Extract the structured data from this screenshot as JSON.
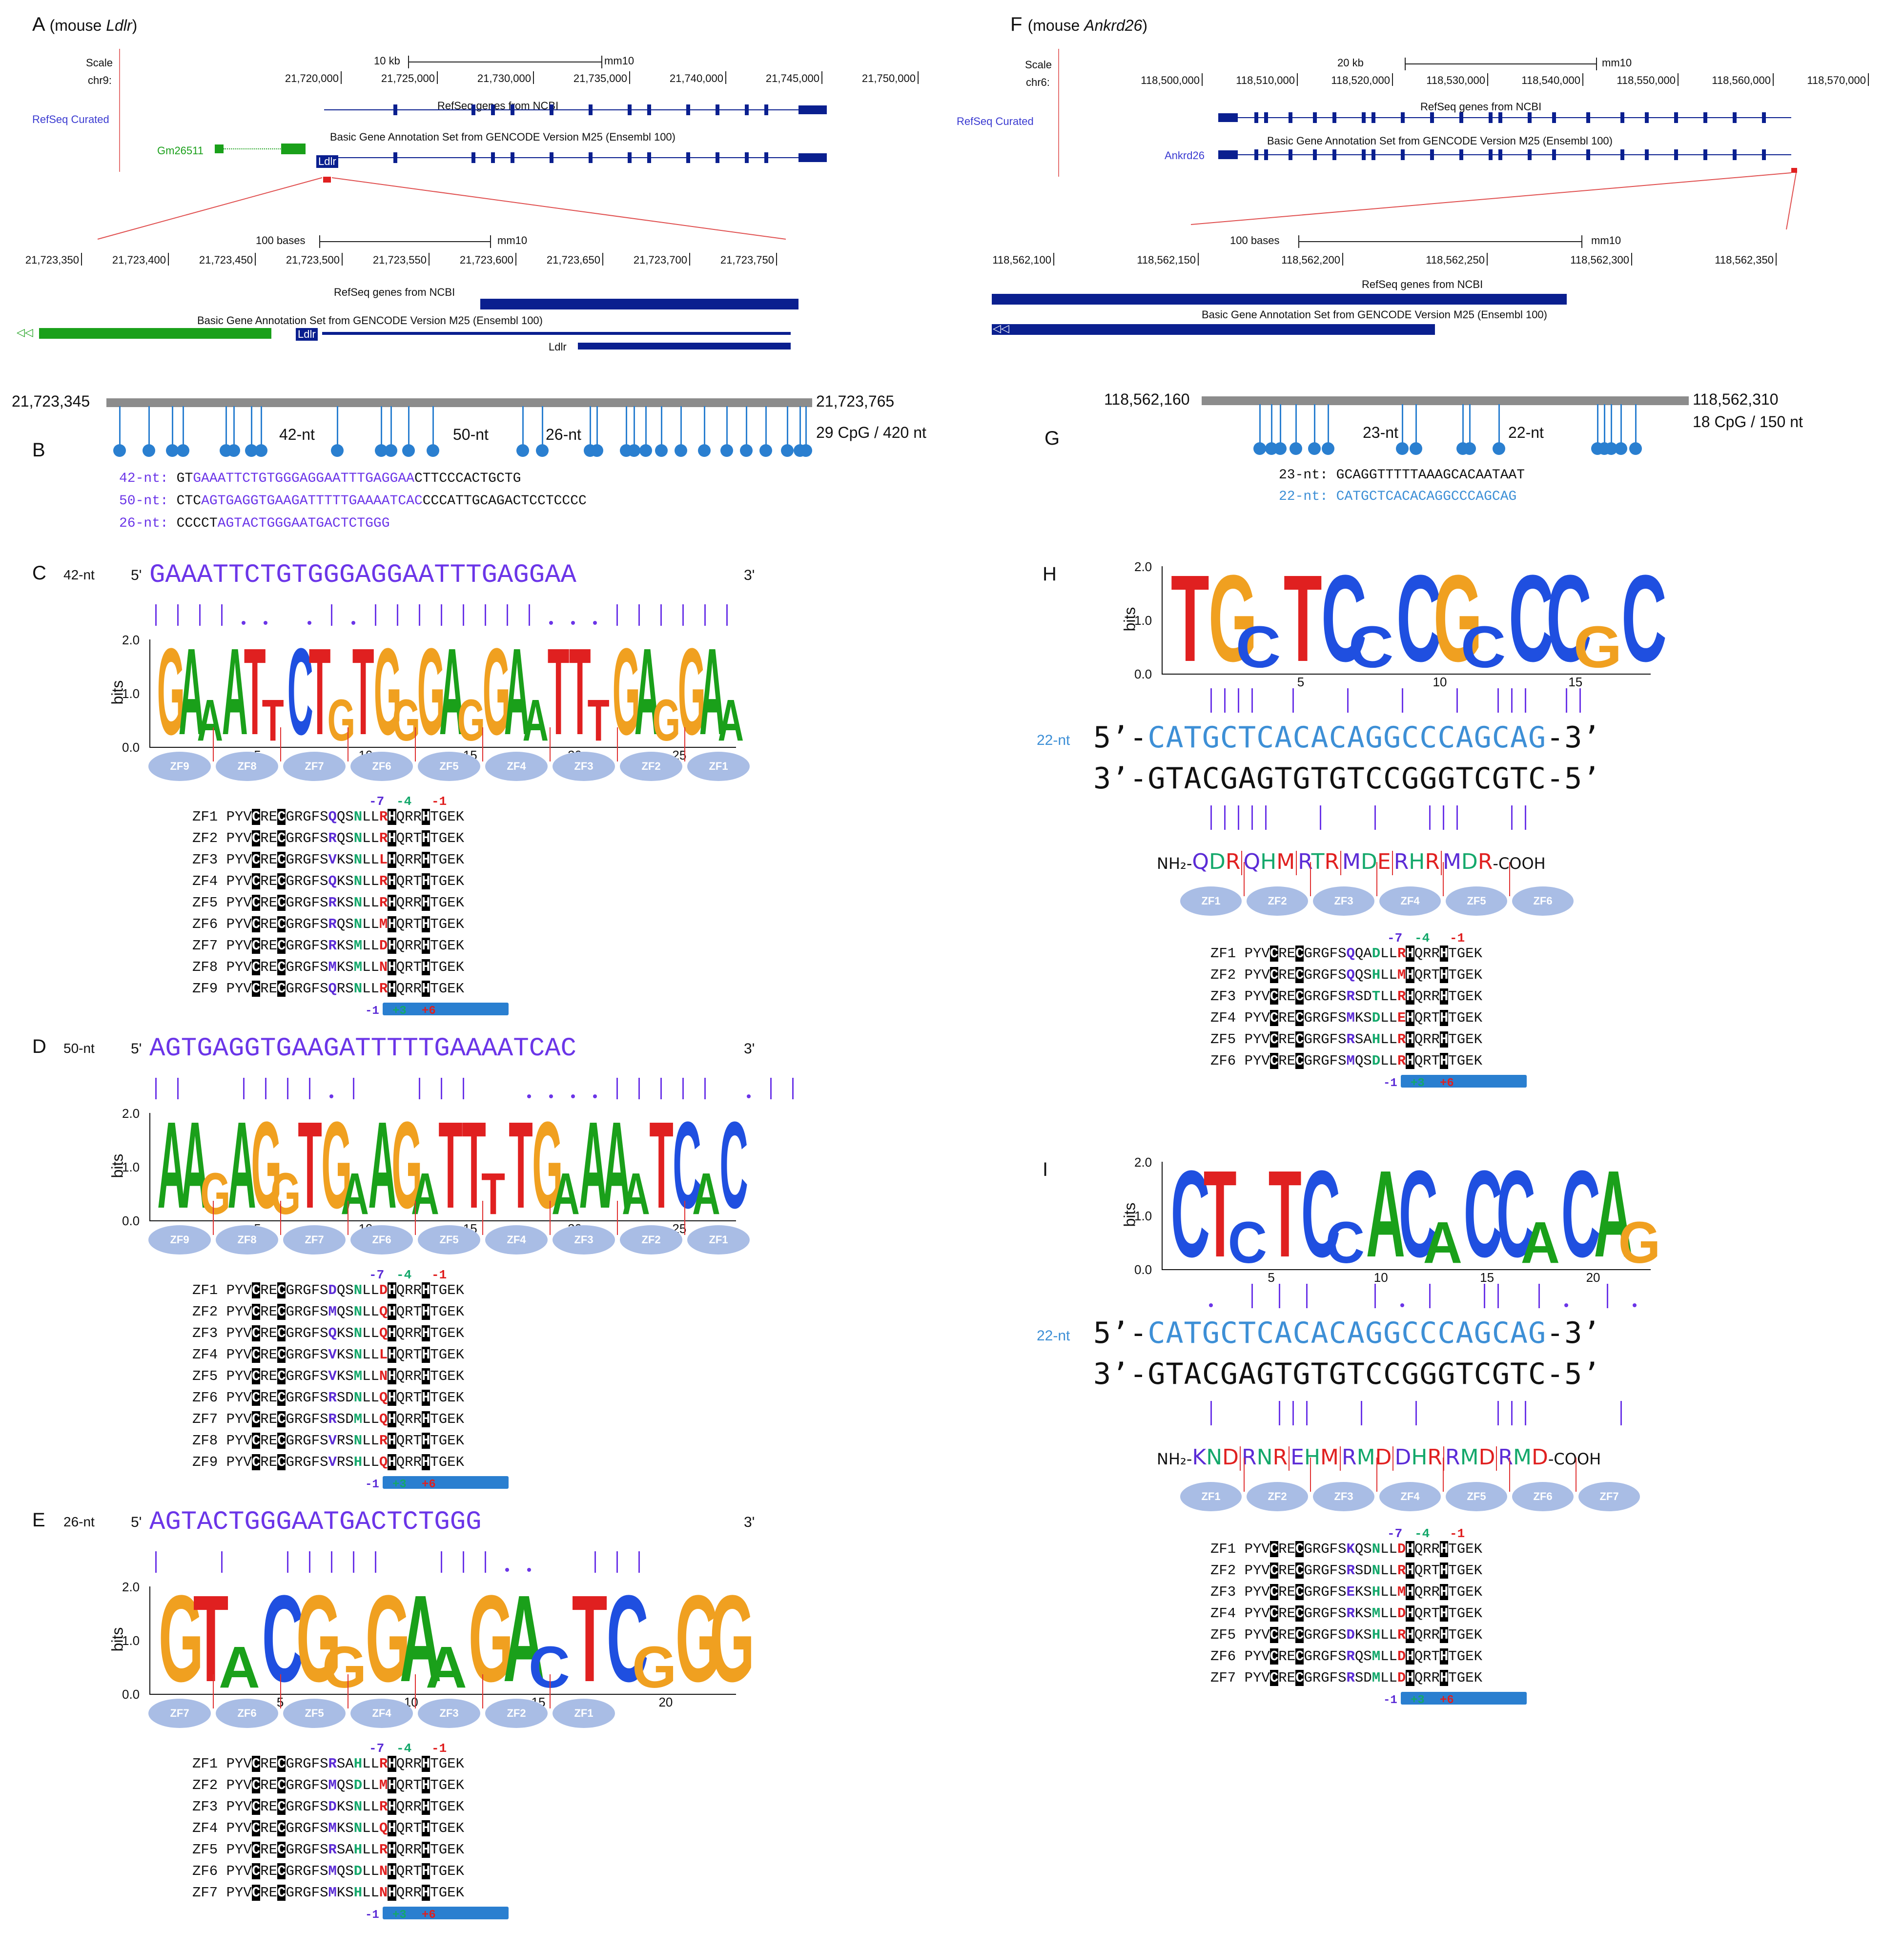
{
  "colors": {
    "purple": "#6b35e8",
    "light_blue": "#3d8fd6",
    "navy": "#0a1f8f",
    "green": "#1aa01a",
    "pin": "#2a7fd0",
    "zf": "#a9bde5",
    "red": "#e02020",
    "teal": "#14a86b"
  },
  "panelA": {
    "letter": "A",
    "title_prefix": "(mouse ",
    "gene": "Ldlr",
    "title_suffix": ")",
    "scale_label": "Scale",
    "chr_label": "chr9:",
    "scale_bar": "10 kb",
    "assembly": "mm10",
    "ticks": [
      "21,720,000",
      "21,725,000",
      "21,730,000",
      "21,735,000",
      "21,740,000",
      "21,745,000",
      "21,750,000"
    ],
    "track_refseq": "RefSeq Curated",
    "track_refseq_title": "RefSeq genes from NCBI",
    "track_gencode_title": "Basic Gene Annotation Set from GENCODE Version M25 (Ensembl 100)",
    "gene_green": "Gm26511",
    "gene_label": "Ldlr",
    "zoom_scale": "100 bases",
    "zoom_assembly": "mm10",
    "zoom_ticks": [
      "21,723,350",
      "21,723,400",
      "21,723,450",
      "21,723,500",
      "21,723,550",
      "21,723,600",
      "21,723,650",
      "21,723,700",
      "21,723,750"
    ],
    "zoom_refseq_title": "RefSeq genes from NCBI",
    "zoom_gencode_title": "Basic Gene Annotation Set from GENCODE Version M25 (Ensembl 100)",
    "zoom_gene1": "Ldlr",
    "zoom_gene2": "Ldlr"
  },
  "panelB": {
    "letter": "B",
    "start": "21,723,345",
    "end": "21,723,765",
    "summary": "29 CpG / 420 nt",
    "seg_labels": [
      "42-nt",
      "50-nt",
      "26-nt"
    ],
    "seqs": [
      {
        "label": "42-nt:",
        "pre": "GT",
        "core": "GAAATTCTGTGGGAGGAATTTGAGGAA",
        "post": "CTTCCCACTGCTG"
      },
      {
        "label": "50-nt:",
        "pre": "CTC",
        "core": "AGTGAGGTGAAGATTTTTGAAAATCAC",
        "post": "CCCATTGCAGACTCCTCCCC"
      },
      {
        "label": "26-nt:",
        "pre": "CCCCT",
        "core": "AGTACTGGGAATGACTCTGGG",
        "post": ""
      }
    ]
  },
  "panelC": {
    "letter": "C",
    "tag": "42-nt",
    "p5": "5'",
    "p3": "3'",
    "seq": "GAAATTCTGTGGGAGGAATTTGAGGAA",
    "match": "||||.. .|.||||||||...||||||",
    "logo": "GAAATTCTGTGGGAGGAATTTGAGGAA",
    "ylabel": "bits",
    "yticks": [
      "2.0",
      "1.0",
      "0.0"
    ],
    "xticks": [
      "5",
      "10",
      "15",
      "20",
      "25"
    ],
    "zfs": [
      "ZF9",
      "ZF8",
      "ZF7",
      "ZF6",
      "ZF5",
      "ZF4",
      "ZF3",
      "ZF2",
      "ZF1"
    ],
    "pos_labels": [
      "-7",
      "-4",
      "-1"
    ],
    "rows": [
      {
        "n": "ZF1",
        "m7": "Q",
        "mid": "QS",
        "m3": "N",
        "ll": "LL",
        "m1": "R"
      },
      {
        "n": "ZF2",
        "m7": "R",
        "mid": "QS",
        "m3": "N",
        "ll": "LL",
        "m1": "R"
      },
      {
        "n": "ZF3",
        "m7": "V",
        "mid": "KS",
        "m3": "N",
        "ll": "LL",
        "m1": "L"
      },
      {
        "n": "ZF4",
        "m7": "Q",
        "mid": "KS",
        "m3": "N",
        "ll": "LL",
        "m1": "R"
      },
      {
        "n": "ZF5",
        "m7": "R",
        "mid": "KS",
        "m3": "N",
        "ll": "LL",
        "m1": "R"
      },
      {
        "n": "ZF6",
        "m7": "R",
        "mid": "QS",
        "m3": "N",
        "ll": "LL",
        "m1": "M"
      },
      {
        "n": "ZF7",
        "m7": "R",
        "mid": "KS",
        "m3": "M",
        "ll": "LL",
        "m1": "D"
      },
      {
        "n": "ZF8",
        "m7": "M",
        "mid": "KS",
        "m3": "M",
        "ll": "LL",
        "m1": "N"
      },
      {
        "n": "ZF9",
        "m7": "Q",
        "mid": "RS",
        "m3": "N",
        "ll": "LL",
        "m1": "R"
      }
    ]
  },
  "panelD": {
    "letter": "D",
    "tag": "50-nt",
    "p5": "5'",
    "p3": "3'",
    "seq": "AGTGAGGTGAAGATTTTTGAAAATCAC",
    "match": "||  ||||.|  |||  ....||||| .||",
    "logo": "AAGAGGTGAAGATTTTGAAAATCAC",
    "ylabel": "bits",
    "yticks": [
      "2.0",
      "1.0",
      "0.0"
    ],
    "xticks": [
      "5",
      "10",
      "15",
      "20",
      "25"
    ],
    "zfs": [
      "ZF9",
      "ZF8",
      "ZF7",
      "ZF6",
      "ZF5",
      "ZF4",
      "ZF3",
      "ZF2",
      "ZF1"
    ],
    "pos_labels": [
      "-7",
      "-4",
      "-1"
    ],
    "rows": [
      {
        "n": "ZF1",
        "m7": "D",
        "mid": "QS",
        "m3": "N",
        "ll": "LL",
        "m1": "D"
      },
      {
        "n": "ZF2",
        "m7": "M",
        "mid": "QS",
        "m3": "N",
        "ll": "LL",
        "m1": "Q"
      },
      {
        "n": "ZF3",
        "m7": "Q",
        "mid": "KS",
        "m3": "N",
        "ll": "LL",
        "m1": "Q"
      },
      {
        "n": "ZF4",
        "m7": "V",
        "mid": "KS",
        "m3": "N",
        "ll": "LL",
        "m1": "L"
      },
      {
        "n": "ZF5",
        "m7": "V",
        "mid": "KS",
        "m3": "M",
        "ll": "LL",
        "m1": "N"
      },
      {
        "n": "ZF6",
        "m7": "R",
        "mid": "SD",
        "m3": "N",
        "ll": "LL",
        "m1": "Q"
      },
      {
        "n": "ZF7",
        "m7": "R",
        "mid": "SD",
        "m3": "M",
        "ll": "LL",
        "m1": "Q"
      },
      {
        "n": "ZF8",
        "m7": "V",
        "mid": "RS",
        "m3": "N",
        "ll": "LL",
        "m1": "R"
      },
      {
        "n": "ZF9",
        "m7": "V",
        "mid": "RS",
        "m3": "H",
        "ll": "LL",
        "m1": "Q"
      }
    ]
  },
  "panelE": {
    "letter": "E",
    "tag": "26-nt",
    "p5": "5'",
    "p3": "3'",
    "seq": "AGTACTGGGAATGACTCTGGG",
    "match": "|  |  |||||  |||..  |||",
    "logo": "GTACGGGAAGACTCGGG",
    "ylabel": "bits",
    "yticks": [
      "2.0",
      "1.0",
      "0.0"
    ],
    "xticks": [
      "5",
      "10",
      "15",
      "20"
    ],
    "zfs": [
      "ZF7",
      "ZF6",
      "ZF5",
      "ZF4",
      "ZF3",
      "ZF2",
      "ZF1"
    ],
    "pos_labels": [
      "-7",
      "-4",
      "-1"
    ],
    "rows": [
      {
        "n": "ZF1",
        "m7": "R",
        "mid": "SA",
        "m3": "H",
        "ll": "LL",
        "m1": "R"
      },
      {
        "n": "ZF2",
        "m7": "M",
        "mid": "QS",
        "m3": "D",
        "ll": "LL",
        "m1": "M"
      },
      {
        "n": "ZF3",
        "m7": "D",
        "mid": "KS",
        "m3": "N",
        "ll": "LL",
        "m1": "R"
      },
      {
        "n": "ZF4",
        "m7": "M",
        "mid": "KS",
        "m3": "N",
        "ll": "LL",
        "m1": "Q"
      },
      {
        "n": "ZF5",
        "m7": "R",
        "mid": "SA",
        "m3": "H",
        "ll": "LL",
        "m1": "R"
      },
      {
        "n": "ZF6",
        "m7": "M",
        "mid": "QS",
        "m3": "D",
        "ll": "LL",
        "m1": "N"
      },
      {
        "n": "ZF7",
        "m7": "M",
        "mid": "KS",
        "m3": "H",
        "ll": "LL",
        "m1": "N"
      }
    ]
  },
  "panelF": {
    "letter": "F",
    "title_prefix": "(mouse ",
    "gene": "Ankrd26",
    "title_suffix": ")",
    "scale_label": "Scale",
    "chr_label": "chr6:",
    "scale_bar": "20 kb",
    "assembly": "mm10",
    "ticks": [
      "118,500,000",
      "118,510,000",
      "118,520,000",
      "118,530,000",
      "118,540,000",
      "118,550,000",
      "118,560,000",
      "118,570,000"
    ],
    "track_refseq": "RefSeq Curated",
    "track_refseq_title": "RefSeq genes from NCBI",
    "track_gencode_title": "Basic Gene Annotation Set from GENCODE Version M25 (Ensembl 100)",
    "gene_label": "Ankrd26",
    "zoom_scale": "100 bases",
    "zoom_assembly": "mm10",
    "zoom_ticks": [
      "118,562,100",
      "118,562,150",
      "118,562,200",
      "118,562,250",
      "118,562,300",
      "118,562,350"
    ],
    "zoom_refseq_title": "RefSeq genes from NCBI",
    "zoom_gencode_title": "Basic Gene Annotation Set from GENCODE Version M25 (Ensembl 100)"
  },
  "panelG": {
    "letter": "G",
    "start": "118,562,160",
    "end": "118,562,310",
    "summary": "18 CpG / 150 nt",
    "seg_labels": [
      "23-nt",
      "22-nt"
    ],
    "seq23_label": "23-nt:",
    "seq23": "GCAGGTTTTTAAAGCACAATAAT",
    "seq22_label": "22-nt:",
    "seq22": "CATGCTCACACAGGCCCAGCAG"
  },
  "panelH": {
    "letter": "H",
    "ylabel": "bits",
    "yticks": [
      "2.0",
      "1.0",
      "0.0"
    ],
    "xticks": [
      "5",
      "10",
      "15"
    ],
    "logo": "TGCTCCCGCCCGC",
    "match": "||||  |   |   |   |  |||  ||",
    "tag": "22-nt",
    "top_pre": "5’-",
    "top_seq": "CATGCTCACACAGGCCCAGCAG",
    "top_post": "-3’",
    "bot": "3’-GTACGAGTGTGTCCGGGTCGTC-5’",
    "match2": "|||||   |   |   |||   ||",
    "nh2": "NH₂-",
    "cooh": "-COOH",
    "protein": [
      [
        "Q",
        "D",
        "R"
      ],
      [
        "Q",
        "H",
        "M"
      ],
      [
        "R",
        "T",
        "R"
      ],
      [
        "M",
        "D",
        "E"
      ],
      [
        "R",
        "H",
        "R"
      ],
      [
        "M",
        "D",
        "R"
      ]
    ],
    "zfs": [
      "ZF1",
      "ZF2",
      "ZF3",
      "ZF4",
      "ZF5",
      "ZF6"
    ],
    "pos_labels": [
      "-7",
      "-4",
      "-1"
    ],
    "rows": [
      {
        "n": "ZF1",
        "m7": "Q",
        "mid": "QA",
        "m3": "D",
        "ll": "LL",
        "m1": "R"
      },
      {
        "n": "ZF2",
        "m7": "Q",
        "mid": "QS",
        "m3": "H",
        "ll": "LL",
        "m1": "M"
      },
      {
        "n": "ZF3",
        "m7": "R",
        "mid": "SD",
        "m3": "T",
        "ll": "LL",
        "m1": "R"
      },
      {
        "n": "ZF4",
        "m7": "M",
        "mid": "KS",
        "m3": "D",
        "ll": "LL",
        "m1": "E"
      },
      {
        "n": "ZF5",
        "m7": "R",
        "mid": "SA",
        "m3": "H",
        "ll": "LL",
        "m1": "R"
      },
      {
        "n": "ZF6",
        "m7": "M",
        "mid": "QS",
        "m3": "D",
        "ll": "LL",
        "m1": "R"
      }
    ]
  },
  "panelI": {
    "letter": "I",
    "ylabel": "bits",
    "yticks": [
      "2.0",
      "1.0",
      "0.0"
    ],
    "xticks": [
      "5",
      "10",
      "15",
      "20"
    ],
    "logo": "CTCTCCACACCACAG",
    "match": ".  | | |    | . |   ||  | .  | .",
    "tag": "22-nt",
    "top_pre": "5’-",
    "top_seq": "CATGCTCACACAGGCCCAGCAG",
    "top_post": "-3’",
    "bot": "3’-GTACGAGTGTGTCCGGGTCGTC-5’",
    "match2": "|    |||   |   |     |||      |",
    "nh2": "NH₂-",
    "cooh": "-COOH",
    "protein": [
      [
        "K",
        "N",
        "D"
      ],
      [
        "R",
        "N",
        "R"
      ],
      [
        "E",
        "H",
        "M"
      ],
      [
        "R",
        "M",
        "D"
      ],
      [
        "D",
        "H",
        "R"
      ],
      [
        "R",
        "M",
        "D"
      ],
      [
        "R",
        "M",
        "D"
      ]
    ],
    "zfs": [
      "ZF1",
      "ZF2",
      "ZF3",
      "ZF4",
      "ZF5",
      "ZF6",
      "ZF7"
    ],
    "pos_labels": [
      "-7",
      "-4",
      "-1"
    ],
    "rows": [
      {
        "n": "ZF1",
        "m7": "K",
        "mid": "QS",
        "m3": "N",
        "ll": "LL",
        "m1": "D"
      },
      {
        "n": "ZF2",
        "m7": "R",
        "mid": "SD",
        "m3": "N",
        "ll": "LL",
        "m1": "R"
      },
      {
        "n": "ZF3",
        "m7": "E",
        "mid": "KS",
        "m3": "H",
        "ll": "LL",
        "m1": "M"
      },
      {
        "n": "ZF4",
        "m7": "R",
        "mid": "KS",
        "m3": "M",
        "ll": "LL",
        "m1": "D"
      },
      {
        "n": "ZF5",
        "m7": "D",
        "mid": "KS",
        "m3": "H",
        "ll": "LL",
        "m1": "R"
      },
      {
        "n": "ZF6",
        "m7": "R",
        "mid": "QS",
        "m3": "M",
        "ll": "LL",
        "m1": "D"
      },
      {
        "n": "ZF7",
        "m7": "R",
        "mid": "SD",
        "m3": "M",
        "ll": "LL",
        "m1": "D"
      }
    ]
  },
  "zf_common": {
    "prefix": "PYVCRECGRGFS",
    "suffix": "HQRRHTGEK",
    "suffix_alt": "HQRTHTGEK",
    "bar_labels": [
      "-1",
      "+3",
      "+6"
    ]
  }
}
